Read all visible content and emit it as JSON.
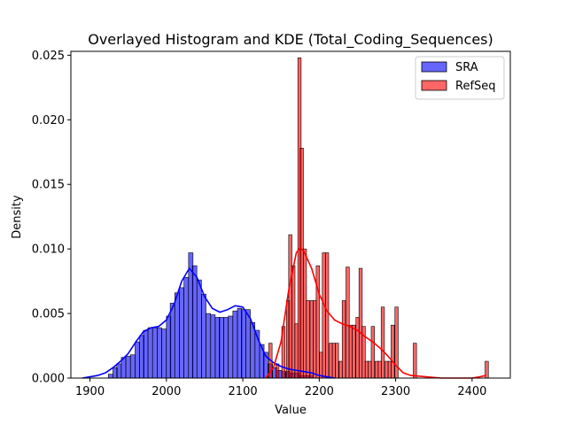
{
  "chart_data": {
    "type": "histogram",
    "title": "Overlayed Histogram and KDE (Total_Coding_Sequences)",
    "xlabel": "Value",
    "ylabel": "Density",
    "xlim": [
      1875,
      2450
    ],
    "ylim": [
      0,
      0.0253
    ],
    "xticks": [
      1900,
      2000,
      2100,
      2200,
      2300,
      2400
    ],
    "yticks": [
      0.0,
      0.005,
      0.01,
      0.015,
      0.02,
      0.025
    ],
    "ytick_labels": [
      "0.000",
      "0.005",
      "0.010",
      "0.015",
      "0.020",
      "0.025"
    ],
    "legend": {
      "position": "upper right",
      "entries": [
        "SRA",
        "RefSeq"
      ]
    },
    "series": [
      {
        "name": "SRA",
        "fill_color": "#0000ff",
        "fill_opacity": 0.6,
        "line_color": "#0000ff",
        "bin_width": 5.8,
        "bins": [
          [
            1924,
            0.0003
          ],
          [
            1930,
            0.0008
          ],
          [
            1935,
            0.0011
          ],
          [
            1941,
            0.0016
          ],
          [
            1947,
            0.0017
          ],
          [
            1953,
            0.0018
          ],
          [
            1959,
            0.0028
          ],
          [
            1965,
            0.0033
          ],
          [
            1970,
            0.0037
          ],
          [
            1976,
            0.0039
          ],
          [
            1982,
            0.0039
          ],
          [
            1988,
            0.0039
          ],
          [
            1994,
            0.0038
          ],
          [
            2000,
            0.0048
          ],
          [
            2005,
            0.0058
          ],
          [
            2011,
            0.0066
          ],
          [
            2017,
            0.007
          ],
          [
            2023,
            0.0078
          ],
          [
            2029,
            0.0097
          ],
          [
            2034,
            0.0087
          ],
          [
            2040,
            0.0076
          ],
          [
            2046,
            0.0065
          ],
          [
            2052,
            0.005
          ],
          [
            2058,
            0.0049
          ],
          [
            2064,
            0.0047
          ],
          [
            2069,
            0.0047
          ],
          [
            2075,
            0.0047
          ],
          [
            2081,
            0.0048
          ],
          [
            2087,
            0.0052
          ],
          [
            2093,
            0.0054
          ],
          [
            2098,
            0.0053
          ],
          [
            2104,
            0.0053
          ],
          [
            2110,
            0.0043
          ],
          [
            2116,
            0.0037
          ],
          [
            2122,
            0.0026
          ],
          [
            2127,
            0.002
          ],
          [
            2133,
            0.0011
          ],
          [
            2139,
            0.0008
          ],
          [
            2145,
            0.0006
          ],
          [
            2151,
            0.0005
          ],
          [
            2156,
            0.0005
          ],
          [
            2162,
            0.0004
          ],
          [
            2168,
            0.0004
          ],
          [
            2174,
            0.0002
          ],
          [
            2180,
            0.0002
          ],
          [
            2186,
            0.0002
          ]
        ],
        "kde": [
          [
            1890,
            0.0
          ],
          [
            1900,
            0.0001
          ],
          [
            1910,
            0.0002
          ],
          [
            1920,
            0.0004
          ],
          [
            1930,
            0.0008
          ],
          [
            1940,
            0.0013
          ],
          [
            1950,
            0.0019
          ],
          [
            1960,
            0.0028
          ],
          [
            1970,
            0.0036
          ],
          [
            1980,
            0.0039
          ],
          [
            1990,
            0.004
          ],
          [
            2000,
            0.0045
          ],
          [
            2010,
            0.0057
          ],
          [
            2020,
            0.0075
          ],
          [
            2030,
            0.0085
          ],
          [
            2040,
            0.0078
          ],
          [
            2050,
            0.0063
          ],
          [
            2060,
            0.0054
          ],
          [
            2070,
            0.0051
          ],
          [
            2080,
            0.0053
          ],
          [
            2090,
            0.0056
          ],
          [
            2100,
            0.0055
          ],
          [
            2110,
            0.0046
          ],
          [
            2120,
            0.003
          ],
          [
            2130,
            0.0017
          ],
          [
            2140,
            0.0012
          ],
          [
            2150,
            0.0009
          ],
          [
            2160,
            0.0007
          ],
          [
            2170,
            0.0006
          ],
          [
            2180,
            0.0005
          ],
          [
            2190,
            0.0004
          ],
          [
            2200,
            0.0002
          ],
          [
            2210,
            0.0001
          ],
          [
            2220,
            0.0
          ]
        ]
      },
      {
        "name": "RefSeq",
        "fill_color": "#ff0000",
        "fill_opacity": 0.6,
        "line_color": "#ff0000",
        "bin_width": 4.3,
        "bins": [
          [
            2134,
            0.0027
          ],
          [
            2143,
            0.0011
          ],
          [
            2151,
            0.004
          ],
          [
            2157,
            0.006
          ],
          [
            2160,
            0.0111
          ],
          [
            2164,
            0.0087
          ],
          [
            2168,
            0.0042
          ],
          [
            2172,
            0.0248
          ],
          [
            2175,
            0.0178
          ],
          [
            2179,
            0.01
          ],
          [
            2183,
            0.006
          ],
          [
            2188,
            0.006
          ],
          [
            2192,
            0.006
          ],
          [
            2196,
            0.0087
          ],
          [
            2200,
            0.002
          ],
          [
            2204,
            0.0097
          ],
          [
            2208,
            0.0097
          ],
          [
            2213,
            0.0027
          ],
          [
            2217,
            0.0027
          ],
          [
            2221,
            0.0027
          ],
          [
            2226,
            0.0013
          ],
          [
            2230,
            0.006
          ],
          [
            2235,
            0.0086
          ],
          [
            2239,
            0.0041
          ],
          [
            2243,
            0.0041
          ],
          [
            2248,
            0.0047
          ],
          [
            2252,
            0.0085
          ],
          [
            2256,
            0.004
          ],
          [
            2260,
            0.0013
          ],
          [
            2264,
            0.0013
          ],
          [
            2268,
            0.004
          ],
          [
            2273,
            0.0013
          ],
          [
            2277,
            0.0013
          ],
          [
            2281,
            0.0055
          ],
          [
            2286,
            0.0013
          ],
          [
            2290,
            0.0013
          ],
          [
            2294,
            0.0041
          ],
          [
            2299,
            0.0055
          ],
          [
            2323,
            0.0027
          ],
          [
            2417,
            0.0013
          ]
        ],
        "kde": [
          [
            2130,
            0.0
          ],
          [
            2140,
            0.0008
          ],
          [
            2150,
            0.0028
          ],
          [
            2160,
            0.0068
          ],
          [
            2170,
            0.0097
          ],
          [
            2175,
            0.0101
          ],
          [
            2180,
            0.0098
          ],
          [
            2190,
            0.0085
          ],
          [
            2200,
            0.0065
          ],
          [
            2210,
            0.0052
          ],
          [
            2220,
            0.0045
          ],
          [
            2230,
            0.0042
          ],
          [
            2240,
            0.004
          ],
          [
            2250,
            0.0037
          ],
          [
            2260,
            0.0032
          ],
          [
            2270,
            0.0028
          ],
          [
            2280,
            0.0023
          ],
          [
            2290,
            0.0017
          ],
          [
            2300,
            0.001
          ],
          [
            2310,
            0.0004
          ],
          [
            2320,
            0.0002
          ],
          [
            2340,
            0.0001
          ],
          [
            2360,
            0.0
          ],
          [
            2380,
            0.0
          ],
          [
            2400,
            0.0
          ],
          [
            2410,
            0.0001
          ],
          [
            2418,
            0.0002
          ]
        ]
      }
    ]
  }
}
